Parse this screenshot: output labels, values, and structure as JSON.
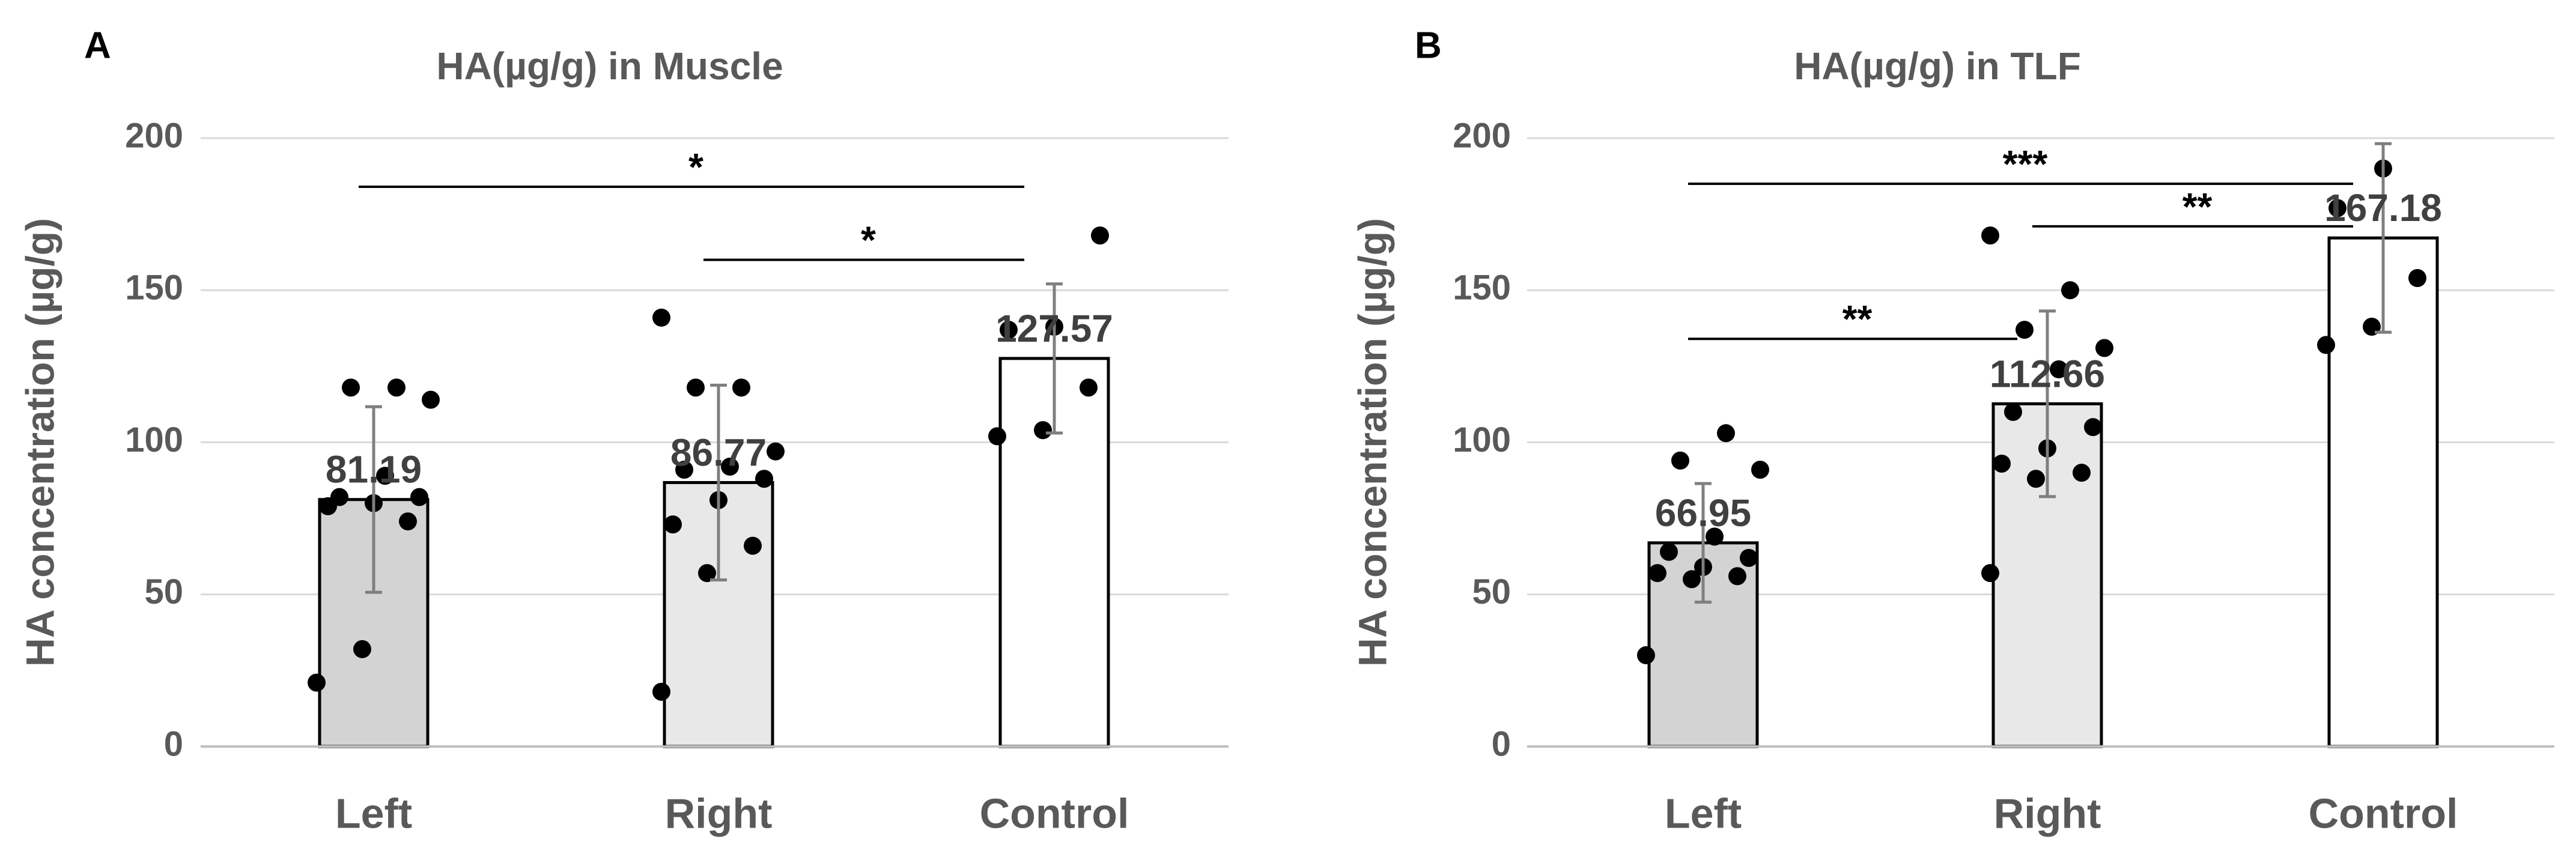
{
  "chart_data": [
    {
      "panel_label": "A",
      "type": "bar",
      "title": "HA(µg/g) in Muscle",
      "xlabel": "",
      "ylabel": "HA concentration (µg/g)",
      "ylim": [
        0,
        200
      ],
      "yticks": [
        0,
        50,
        100,
        150,
        200
      ],
      "grid": true,
      "categories": [
        "Left",
        "Right",
        "Control"
      ],
      "values": [
        81.19,
        86.77,
        127.57
      ],
      "value_labels": [
        "81.19",
        "86.77",
        "127.57"
      ],
      "error_bars": [
        30.5,
        32.0,
        24.5
      ],
      "bar_colors": [
        "#d3d3d3",
        "#e8e8e8",
        "#ffffff"
      ],
      "points": [
        [
          21,
          32,
          74,
          79,
          80,
          82,
          82,
          89,
          114,
          118,
          118
        ],
        [
          18,
          57,
          66,
          73,
          81,
          88,
          91,
          92,
          97,
          118,
          118,
          141
        ],
        [
          102,
          104,
          118,
          137,
          138,
          168
        ]
      ],
      "significance": [
        {
          "from": 0,
          "to": 2,
          "label": "*",
          "y": 184
        },
        {
          "from": 1,
          "to": 2,
          "label": "*",
          "y": 160
        }
      ]
    },
    {
      "panel_label": "B",
      "type": "bar",
      "title": "HA(µg/g) in TLF",
      "xlabel": "",
      "ylabel": "HA concentration (µg/g)",
      "ylim": [
        0,
        200
      ],
      "yticks": [
        0,
        50,
        100,
        150,
        200
      ],
      "grid": true,
      "categories": [
        "Left",
        "Right",
        "Control"
      ],
      "values": [
        66.95,
        112.66,
        167.18
      ],
      "value_labels": [
        "66.95",
        "112.66",
        "167.18"
      ],
      "error_bars": [
        19.5,
        30.5,
        31.0
      ],
      "bar_colors": [
        "#d3d3d3",
        "#e8e8e8",
        "#ffffff"
      ],
      "points": [
        [
          30,
          55,
          56,
          57,
          59,
          62,
          64,
          69,
          91,
          94,
          103
        ],
        [
          57,
          88,
          90,
          93,
          98,
          105,
          110,
          124,
          131,
          137,
          150,
          168
        ],
        [
          132,
          138,
          154,
          177,
          190
        ]
      ],
      "significance": [
        {
          "from": 0,
          "to": 2,
          "label": "***",
          "y": 185
        },
        {
          "from": 0,
          "to": 1,
          "label": "**",
          "y": 134
        },
        {
          "from": 1,
          "to": 2,
          "label": "**",
          "y": 171
        }
      ]
    }
  ]
}
